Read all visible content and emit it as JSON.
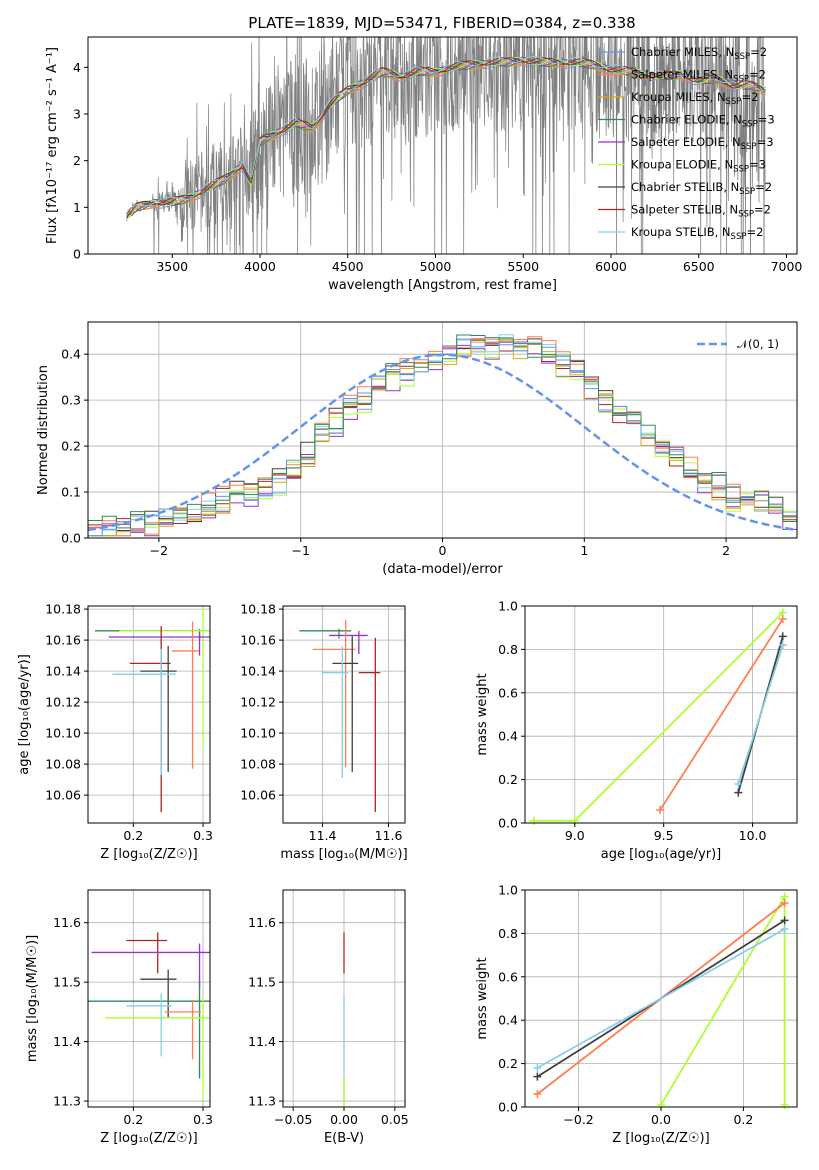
{
  "figure": {
    "title": "PLATE=1839, MJD=53471, FIBERID=0384, z=0.338"
  },
  "colors": {
    "series": [
      "#1f77b4",
      "#ff7f0e",
      "#2ca02c",
      "#d62728",
      "#9467bd",
      "#8c564b",
      "#e377c2",
      "#7f7f7f",
      "#bcbd22"
    ]
  },
  "chart_data": [
    {
      "id": "spectrum",
      "type": "line",
      "xlabel": "wavelength [Angstrom, rest frame]",
      "ylabel": "Flux [f_λ 10^-17 erg cm^-2 s^-1 A^-1]",
      "xlim": [
        3020,
        7060
      ],
      "ylim": [
        0,
        4.65
      ],
      "xticks": [
        "3500",
        "4000",
        "4500",
        "5000",
        "5500",
        "6000",
        "6500",
        "7000"
      ],
      "yticks": [
        "0",
        "1",
        "2",
        "3",
        "4"
      ],
      "grid": false,
      "legend_position": "upper-right",
      "legend": [
        {
          "label": "Chabrier MILES, N",
          "sub": "SSP",
          "tail": "=2",
          "color": "#6495ED"
        },
        {
          "label": "Salpeter MILES, N",
          "sub": "SSP",
          "tail": "=2",
          "color": "#FF7F50"
        },
        {
          "label": "Kroupa MILES, N",
          "sub": "SSP",
          "tail": "=2",
          "color": "#DAA520"
        },
        {
          "label": "Chabrier ELODIE, N",
          "sub": "SSP",
          "tail": "=3",
          "color": "#2E8B57"
        },
        {
          "label": "Salpeter ELODIE, N",
          "sub": "SSP",
          "tail": "=3",
          "color": "#9932CC"
        },
        {
          "label": "Kroupa ELODIE, N",
          "sub": "SSP",
          "tail": "=3",
          "color": "#ADFF2F"
        },
        {
          "label": "Chabrier STELIB, N",
          "sub": "SSP",
          "tail": "=2",
          "color": "#404040"
        },
        {
          "label": "Salpeter STELIB, N",
          "sub": "SSP",
          "tail": "=2",
          "color": "#B22222"
        },
        {
          "label": "Kroupa STELIB, N",
          "sub": "SSP",
          "tail": "=2",
          "color": "#87CEEB"
        }
      ],
      "model_x": [
        3240,
        3300,
        3400,
        3500,
        3600,
        3700,
        3800,
        3900,
        3950,
        4000,
        4100,
        4200,
        4300,
        4400,
        4500,
        4600,
        4700,
        4800,
        4900,
        5000,
        5100,
        5200,
        5300,
        5400,
        5500,
        5600,
        5700,
        5800,
        5900,
        6000,
        6100,
        6200,
        6300,
        6400,
        6500,
        6600,
        6700,
        6800,
        6880
      ],
      "model_y": [
        0.8,
        1.0,
        1.1,
        1.1,
        1.2,
        1.4,
        1.6,
        1.9,
        1.5,
        2.4,
        2.6,
        2.8,
        2.7,
        3.2,
        3.5,
        3.7,
        3.9,
        3.8,
        3.9,
        3.9,
        4.0,
        4.05,
        4.1,
        4.1,
        4.15,
        4.1,
        4.1,
        4.1,
        4.05,
        3.95,
        3.9,
        3.85,
        3.8,
        3.85,
        3.7,
        3.75,
        3.6,
        3.6,
        3.5
      ],
      "data_color": "#808080"
    },
    {
      "id": "residuals",
      "type": "line",
      "xlabel": "(data-model)/error",
      "ylabel": "Normed distribution",
      "xlim": [
        -2.5,
        2.5
      ],
      "ylim": [
        0,
        0.47
      ],
      "xticks": [
        "−2",
        "−1",
        "0",
        "1",
        "2"
      ],
      "yticks": [
        "0.0",
        "0.1",
        "0.2",
        "0.3",
        "0.4"
      ],
      "grid": true,
      "legend_position": "upper-right",
      "legend_label": "𝒩(0, 1)",
      "gaussian_color": "#6495ED",
      "hist_bins": [
        -2.5,
        -2.4,
        -2.3,
        -2.2,
        -2.1,
        -2.0,
        -1.9,
        -1.8,
        -1.7,
        -1.6,
        -1.5,
        -1.4,
        -1.3,
        -1.2,
        -1.1,
        -1.0,
        -0.9,
        -0.8,
        -0.7,
        -0.6,
        -0.5,
        -0.4,
        -0.3,
        -0.2,
        -0.1,
        0.0,
        0.1,
        0.2,
        0.3,
        0.4,
        0.5,
        0.6,
        0.7,
        0.8,
        0.9,
        1.0,
        1.1,
        1.2,
        1.3,
        1.4,
        1.5,
        1.6,
        1.7,
        1.8,
        1.9,
        2.0,
        2.1,
        2.2,
        2.3,
        2.4,
        2.5
      ],
      "hist_values": [
        0.02,
        0.02,
        0.02,
        0.025,
        0.03,
        0.04,
        0.05,
        0.05,
        0.07,
        0.08,
        0.1,
        0.1,
        0.11,
        0.12,
        0.15,
        0.18,
        0.22,
        0.25,
        0.28,
        0.3,
        0.33,
        0.35,
        0.36,
        0.38,
        0.39,
        0.4,
        0.41,
        0.42,
        0.42,
        0.42,
        0.42,
        0.41,
        0.4,
        0.38,
        0.36,
        0.33,
        0.3,
        0.27,
        0.25,
        0.22,
        0.2,
        0.18,
        0.15,
        0.13,
        0.11,
        0.09,
        0.08,
        0.07,
        0.06,
        0.05
      ]
    },
    {
      "id": "age-vs-Z",
      "type": "scatter",
      "xlabel": "Z [log₁₀(Z/Z☉)]",
      "ylabel": "age [log₁₀(age/yr)]",
      "xlim": [
        0.135,
        0.31
      ],
      "ylim": [
        10.042,
        10.182
      ],
      "xticks": [
        "0.2",
        "0.3"
      ],
      "yticks": [
        "10.06",
        "10.08",
        "10.10",
        "10.12",
        "10.14",
        "10.16",
        "10.18"
      ],
      "points": [
        {
          "x": 0.295,
          "y": 10.166,
          "xe": 0.15,
          "ye": 0.005,
          "c": "#2E8B57"
        },
        {
          "x": 0.3,
          "y": 10.166,
          "xe": 0.12,
          "ye": 0.075,
          "c": "#ADFF2F"
        },
        {
          "x": 0.295,
          "y": 10.162,
          "xe": 0.13,
          "ye": 0.012,
          "c": "#9932CC"
        },
        {
          "x": 0.285,
          "y": 10.153,
          "xe": 0.03,
          "ye": 0.076,
          "c": "#FF7F50"
        },
        {
          "x": 0.24,
          "y": 10.145,
          "xe": 0.045,
          "ye": 0.096,
          "c": "#B22222"
        },
        {
          "x": 0.25,
          "y": 10.14,
          "xe": 0.04,
          "ye": 0.065,
          "c": "#404040"
        },
        {
          "x": 0.24,
          "y": 10.138,
          "xe": 0.07,
          "ye": 0.065,
          "c": "#87CEEB"
        }
      ]
    },
    {
      "id": "age-vs-mass",
      "type": "scatter",
      "xlabel": "mass [log₁₀(M/M☉)]",
      "ylabel": "",
      "xlim": [
        11.28,
        11.65
      ],
      "ylim": [
        10.042,
        10.182
      ],
      "xticks": [
        "11.4",
        "11.6"
      ],
      "yticks": [
        "10.06",
        "10.08",
        "10.10",
        "10.12",
        "10.14",
        "10.16",
        "10.18"
      ],
      "points": [
        {
          "x": 11.45,
          "y": 10.166,
          "xe": 0.12,
          "ye": 0.005,
          "c": "#2E8B57"
        },
        {
          "x": 11.51,
          "y": 10.163,
          "xe": 0.09,
          "ye": 0.012,
          "c": "#9932CC"
        },
        {
          "x": 11.47,
          "y": 10.154,
          "xe": 0.1,
          "ye": 0.076,
          "c": "#FF7F50"
        },
        {
          "x": 11.49,
          "y": 10.145,
          "xe": 0.06,
          "ye": 0.07,
          "c": "#404040"
        },
        {
          "x": 11.56,
          "y": 10.139,
          "xe": 0.05,
          "ye": 0.09,
          "c": "#B22222"
        },
        {
          "x": 11.46,
          "y": 10.139,
          "xe": 0.06,
          "ye": 0.068,
          "c": "#87CEEB"
        }
      ]
    },
    {
      "id": "massweight-vs-age",
      "type": "line",
      "xlabel": "age [log₁₀(age/yr)]",
      "ylabel": "mass weight",
      "xlim": [
        8.72,
        10.25
      ],
      "ylim": [
        0,
        1.0
      ],
      "xticks": [
        "9.0",
        "9.5",
        "10.0"
      ],
      "yticks": [
        "0.0",
        "0.2",
        "0.4",
        "0.6",
        "0.8",
        "1.0"
      ],
      "grid": true,
      "series": [
        {
          "c": "#ADFF2F",
          "x": [
            8.77,
            9.0,
            10.17
          ],
          "y": [
            0.01,
            0.01,
            0.97
          ]
        },
        {
          "c": "#FF7F50",
          "x": [
            9.48,
            10.17
          ],
          "y": [
            0.06,
            0.94
          ]
        },
        {
          "c": "#404040",
          "x": [
            9.92,
            10.17
          ],
          "y": [
            0.14,
            0.86
          ]
        },
        {
          "c": "#87CEEB",
          "x": [
            9.92,
            10.17
          ],
          "y": [
            0.18,
            0.82
          ]
        }
      ]
    },
    {
      "id": "mass-vs-Z",
      "type": "scatter",
      "xlabel": "Z [log₁₀(Z/Z☉)]",
      "ylabel": "mass [log₁₀(M/M☉)]",
      "xlim": [
        0.135,
        0.31
      ],
      "ylim": [
        11.29,
        11.655
      ],
      "xticks": [
        "0.2",
        "0.3"
      ],
      "yticks": [
        "11.3",
        "11.4",
        "11.5",
        "11.6"
      ],
      "points": [
        {
          "x": 0.235,
          "y": 11.57,
          "xe": 0.045,
          "ye": 0.055,
          "c": "#B22222"
        },
        {
          "x": 0.295,
          "y": 11.55,
          "xe": 0.155,
          "ye": 0.06,
          "c": "#9932CC"
        },
        {
          "x": 0.25,
          "y": 11.505,
          "xe": 0.04,
          "ye": 0.065,
          "c": "#404040"
        },
        {
          "x": 0.295,
          "y": 11.468,
          "xe": 0.17,
          "ye": 0.13,
          "c": "#2E8B57"
        },
        {
          "x": 0.285,
          "y": 11.45,
          "xe": 0.04,
          "ye": 0.08,
          "c": "#FF7F50"
        },
        {
          "x": 0.3,
          "y": 11.44,
          "xe": 0.14,
          "ye": 0.14,
          "c": "#ADFF2F"
        },
        {
          "x": 0.24,
          "y": 11.46,
          "xe": 0.05,
          "ye": 0.085,
          "c": "#87CEEB"
        }
      ]
    },
    {
      "id": "mass-vs-EBV",
      "type": "scatter",
      "xlabel": "E(B-V)",
      "ylabel": "",
      "xlim": [
        -0.06,
        0.06
      ],
      "ylim": [
        11.29,
        11.655
      ],
      "xticks": [
        "−0.05",
        "0.00",
        "0.05"
      ],
      "yticks": [
        "11.3",
        "11.4",
        "11.5",
        "11.6"
      ],
      "points": [
        {
          "x": 0.0,
          "y": 11.57,
          "ye": 0.055,
          "c": "#B22222"
        },
        {
          "x": 0.0,
          "y": 11.44,
          "ye": 0.14,
          "c": "#87CEEB"
        },
        {
          "x": 0.0,
          "y": 11.33,
          "ye": 0.04,
          "c": "#ADFF2F"
        }
      ]
    },
    {
      "id": "massweight-vs-Z",
      "type": "line",
      "xlabel": "Z [log₁₀(Z/Z☉)]",
      "ylabel": "mass weight",
      "xlim": [
        -0.33,
        0.33
      ],
      "ylim": [
        0,
        1.0
      ],
      "xticks": [
        "−0.2",
        "0.0",
        "0.2"
      ],
      "yticks": [
        "0.0",
        "0.2",
        "0.4",
        "0.6",
        "0.8",
        "1.0"
      ],
      "grid": true,
      "series": [
        {
          "c": "#ADFF2F",
          "x": [
            0.0,
            0.3,
            0.3
          ],
          "y": [
            0.01,
            0.97,
            0.01
          ]
        },
        {
          "c": "#FF7F50",
          "x": [
            -0.3,
            0.3
          ],
          "y": [
            0.06,
            0.94
          ]
        },
        {
          "c": "#404040",
          "x": [
            -0.3,
            0.3
          ],
          "y": [
            0.14,
            0.86
          ]
        },
        {
          "c": "#87CEEB",
          "x": [
            -0.3,
            0.3
          ],
          "y": [
            0.18,
            0.82
          ]
        }
      ]
    }
  ]
}
